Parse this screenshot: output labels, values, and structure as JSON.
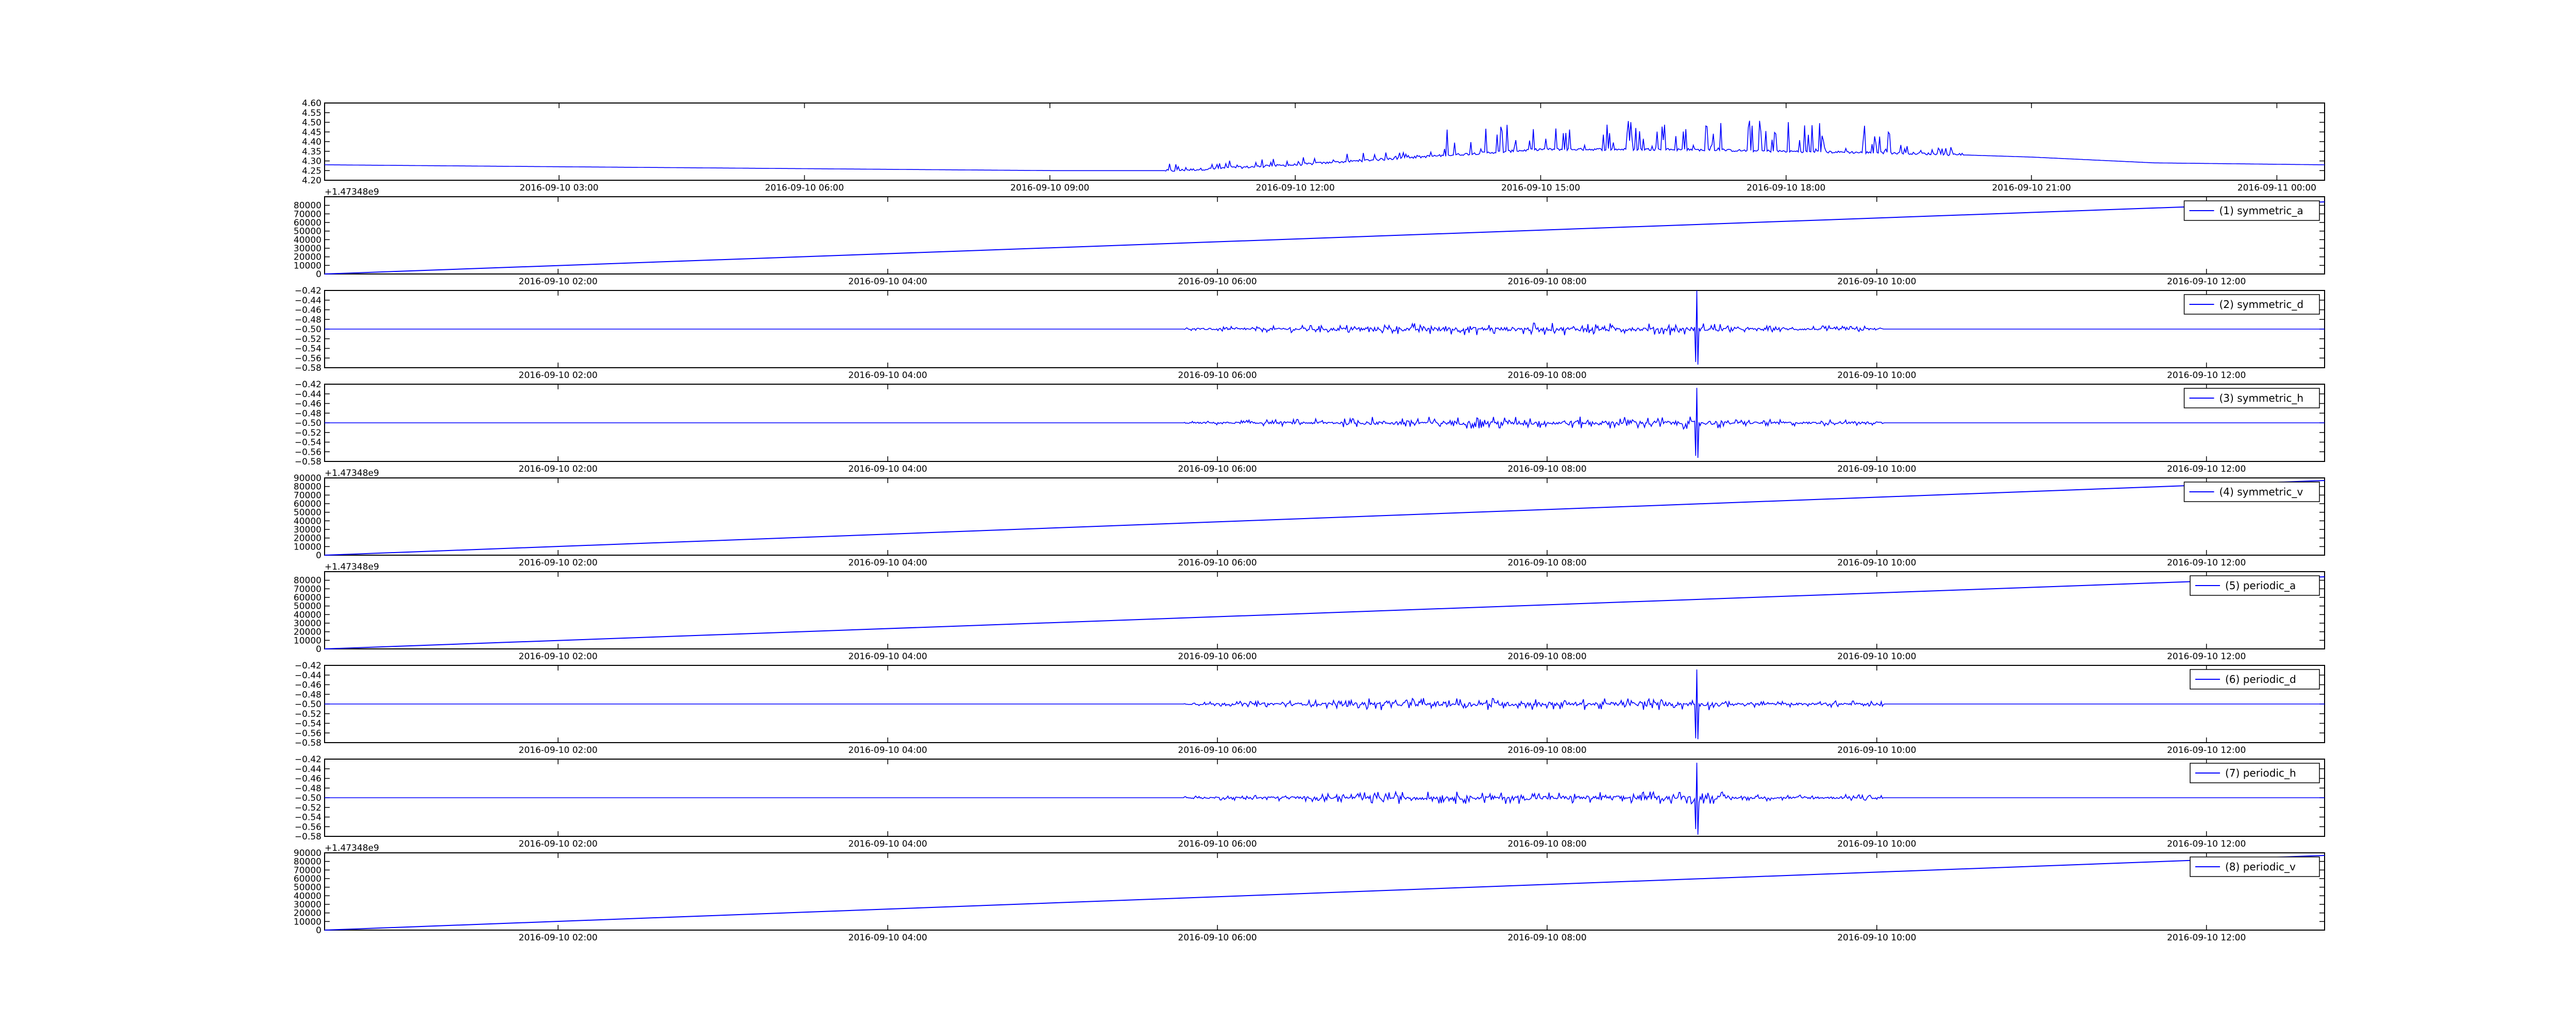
{
  "figure": {
    "background": "#ffffff",
    "line_color": "#0000ff"
  },
  "chart_data": [
    {
      "type": "line",
      "ylim": [
        4.2,
        4.6
      ],
      "yticks": [
        "4.60",
        "4.55",
        "4.50",
        "4.45",
        "4.40",
        "4.35",
        "4.30",
        "4.25",
        "4.20"
      ],
      "xtick_labels": [
        "2016-09-10 03:00",
        "2016-09-10 06:00",
        "2016-09-10 09:00",
        "2016-09-10 12:00",
        "2016-09-10 15:00",
        "2016-09-10 18:00",
        "2016-09-10 21:00",
        "2016-09-11 00:00"
      ],
      "xlim": [
        "2016-09-10 00:08",
        "2016-09-11 00:35"
      ],
      "offset_label": "",
      "legend": "",
      "series": [
        {
          "name": "",
          "style": "voltage",
          "x": [
            "2016-09-10 00:08",
            "2016-09-10 03:00",
            "2016-09-10 06:00",
            "2016-09-10 09:00",
            "2016-09-10 10:30",
            "2016-09-10 12:00",
            "2016-09-10 13:30",
            "2016-09-10 15:00",
            "2016-09-10 16:30",
            "2016-09-10 18:00",
            "2016-09-10 19:30",
            "2016-09-10 21:00",
            "2016-09-10 22:30",
            "2016-09-11 00:35"
          ],
          "y": [
            4.28,
            4.27,
            4.26,
            4.25,
            4.25,
            4.28,
            4.32,
            4.36,
            4.36,
            4.35,
            4.34,
            4.32,
            4.29,
            4.28
          ]
        }
      ]
    },
    {
      "type": "line",
      "ylim": [
        0,
        90000
      ],
      "yticks": [
        "80000",
        "70000",
        "60000",
        "50000",
        "40000",
        "30000",
        "20000",
        "10000",
        "0"
      ],
      "xtick_labels": [
        "2016-09-10 02:00",
        "2016-09-10 04:00",
        "2016-09-10 06:00",
        "2016-09-10 08:00",
        "2016-09-10 10:00",
        "2016-09-10 12:00"
      ],
      "xlim": [
        "2016-09-10 00:35",
        "2016-09-10 12:43"
      ],
      "offset_label": "+1.47348e9",
      "legend": "(1) symmetric_a",
      "series": [
        {
          "name": "(1) symmetric_a",
          "style": "ramp",
          "x": [
            "2016-09-10 00:35",
            "2016-09-10 12:43"
          ],
          "y": [
            0,
            84000
          ]
        }
      ]
    },
    {
      "type": "line",
      "ylim": [
        -0.58,
        -0.42
      ],
      "yticks": [
        "−0.42",
        "−0.44",
        "−0.46",
        "−0.48",
        "−0.50",
        "−0.52",
        "−0.54",
        "−0.56",
        "−0.58"
      ],
      "xtick_labels": [
        "2016-09-10 02:00",
        "2016-09-10 04:00",
        "2016-09-10 06:00",
        "2016-09-10 08:00",
        "2016-09-10 10:00",
        "2016-09-10 12:00"
      ],
      "xlim": [
        "2016-09-10 00:35",
        "2016-09-10 12:43"
      ],
      "offset_label": "",
      "legend": "(2) symmetric_d",
      "series": [
        {
          "name": "(2) symmetric_d",
          "style": "noise",
          "baseline": -0.5,
          "x": [
            "2016-09-10 00:35",
            "2016-09-10 12:43"
          ],
          "y": [
            -0.5,
            -0.5
          ]
        }
      ]
    },
    {
      "type": "line",
      "ylim": [
        -0.58,
        -0.42
      ],
      "yticks": [
        "−0.42",
        "−0.44",
        "−0.46",
        "−0.48",
        "−0.50",
        "−0.52",
        "−0.54",
        "−0.56",
        "−0.58"
      ],
      "xtick_labels": [
        "2016-09-10 02:00",
        "2016-09-10 04:00",
        "2016-09-10 06:00",
        "2016-09-10 08:00",
        "2016-09-10 10:00",
        "2016-09-10 12:00"
      ],
      "xlim": [
        "2016-09-10 00:35",
        "2016-09-10 12:43"
      ],
      "offset_label": "",
      "legend": "(3) symmetric_h",
      "series": [
        {
          "name": "(3) symmetric_h",
          "style": "noise",
          "baseline": -0.5,
          "x": [
            "2016-09-10 00:35",
            "2016-09-10 12:43"
          ],
          "y": [
            -0.5,
            -0.5
          ]
        }
      ]
    },
    {
      "type": "line",
      "ylim": [
        0,
        90000
      ],
      "yticks": [
        "90000",
        "80000",
        "70000",
        "60000",
        "50000",
        "40000",
        "30000",
        "20000",
        "10000",
        "0"
      ],
      "xtick_labels": [
        "2016-09-10 02:00",
        "2016-09-10 04:00",
        "2016-09-10 06:00",
        "2016-09-10 08:00",
        "2016-09-10 10:00",
        "2016-09-10 12:00"
      ],
      "xlim": [
        "2016-09-10 00:35",
        "2016-09-10 12:43"
      ],
      "offset_label": "+1.47348e9",
      "legend": "(4) symmetric_v",
      "series": [
        {
          "name": "(4) symmetric_v",
          "style": "ramp",
          "x": [
            "2016-09-10 00:35",
            "2016-09-10 12:43"
          ],
          "y": [
            0,
            87000
          ]
        }
      ]
    },
    {
      "type": "line",
      "ylim": [
        0,
        90000
      ],
      "yticks": [
        "80000",
        "70000",
        "60000",
        "50000",
        "40000",
        "30000",
        "20000",
        "10000",
        "0"
      ],
      "xtick_labels": [
        "2016-09-10 02:00",
        "2016-09-10 04:00",
        "2016-09-10 06:00",
        "2016-09-10 08:00",
        "2016-09-10 10:00",
        "2016-09-10 12:00"
      ],
      "xlim": [
        "2016-09-10 00:35",
        "2016-09-10 12:43"
      ],
      "offset_label": "+1.47348e9",
      "legend": "(5) periodic_a",
      "series": [
        {
          "name": "(5) periodic_a",
          "style": "ramp",
          "x": [
            "2016-09-10 00:35",
            "2016-09-10 12:43"
          ],
          "y": [
            0,
            84000
          ]
        }
      ]
    },
    {
      "type": "line",
      "ylim": [
        -0.58,
        -0.42
      ],
      "yticks": [
        "−0.42",
        "−0.44",
        "−0.46",
        "−0.48",
        "−0.50",
        "−0.52",
        "−0.54",
        "−0.56",
        "−0.58"
      ],
      "xtick_labels": [
        "2016-09-10 02:00",
        "2016-09-10 04:00",
        "2016-09-10 06:00",
        "2016-09-10 08:00",
        "2016-09-10 10:00",
        "2016-09-10 12:00"
      ],
      "xlim": [
        "2016-09-10 00:35",
        "2016-09-10 12:43"
      ],
      "offset_label": "",
      "legend": "(6) periodic_d",
      "series": [
        {
          "name": "(6) periodic_d",
          "style": "noise",
          "baseline": -0.5,
          "x": [
            "2016-09-10 00:35",
            "2016-09-10 12:43"
          ],
          "y": [
            -0.5,
            -0.5
          ]
        }
      ]
    },
    {
      "type": "line",
      "ylim": [
        -0.58,
        -0.42
      ],
      "yticks": [
        "−0.42",
        "−0.44",
        "−0.46",
        "−0.48",
        "−0.50",
        "−0.52",
        "−0.54",
        "−0.56",
        "−0.58"
      ],
      "xtick_labels": [
        "2016-09-10 02:00",
        "2016-09-10 04:00",
        "2016-09-10 06:00",
        "2016-09-10 08:00",
        "2016-09-10 10:00",
        "2016-09-10 12:00"
      ],
      "xlim": [
        "2016-09-10 00:35",
        "2016-09-10 12:43"
      ],
      "offset_label": "",
      "legend": "(7) periodic_h",
      "series": [
        {
          "name": "(7) periodic_h",
          "style": "noise",
          "baseline": -0.5,
          "x": [
            "2016-09-10 00:35",
            "2016-09-10 12:43"
          ],
          "y": [
            -0.5,
            -0.5
          ]
        }
      ]
    },
    {
      "type": "line",
      "ylim": [
        0,
        90000
      ],
      "yticks": [
        "90000",
        "80000",
        "70000",
        "60000",
        "50000",
        "40000",
        "30000",
        "20000",
        "10000",
        "0"
      ],
      "xtick_labels": [
        "2016-09-10 02:00",
        "2016-09-10 04:00",
        "2016-09-10 06:00",
        "2016-09-10 08:00",
        "2016-09-10 10:00",
        "2016-09-10 12:00"
      ],
      "xlim": [
        "2016-09-10 00:35",
        "2016-09-10 12:43"
      ],
      "offset_label": "+1.47348e9",
      "legend": "(8) periodic_v",
      "series": [
        {
          "name": "(8) periodic_v",
          "style": "ramp",
          "x": [
            "2016-09-10 00:35",
            "2016-09-10 12:43"
          ],
          "y": [
            0,
            87000
          ]
        }
      ]
    }
  ]
}
